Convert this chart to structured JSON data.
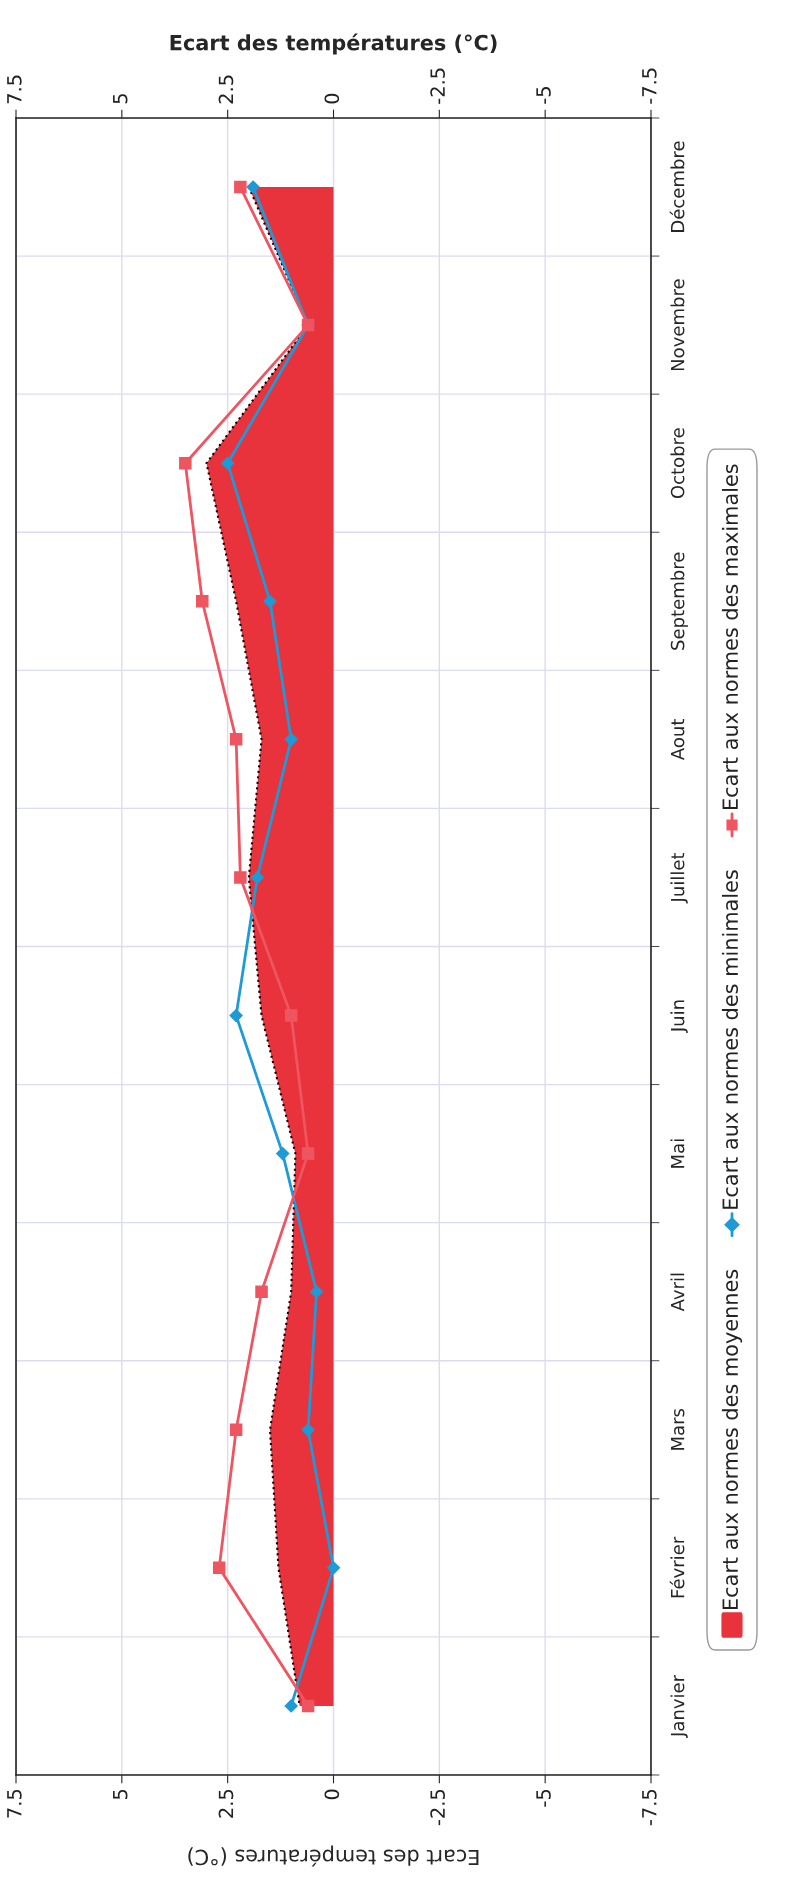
{
  "chart_data": {
    "type": "line",
    "orientation": "horizontal",
    "categories": [
      "Décembre",
      "Novembre",
      "Octobre",
      "Septembre",
      "Aout",
      "Juillet",
      "Juin",
      "Mai",
      "Avril",
      "Mars",
      "Février",
      "Janvier"
    ],
    "series": [
      {
        "name": "Ecart aux normes des moyennes",
        "type": "area",
        "color": "#e8323c",
        "line_style": "dotted",
        "values": [
          2.0,
          0.6,
          3.0,
          2.3,
          1.7,
          2.0,
          1.7,
          0.9,
          1.0,
          1.5,
          1.3,
          0.8
        ]
      },
      {
        "name": "Ecart aux normes des minimales",
        "color": "#1e9ad6",
        "marker": "diamond",
        "values": [
          1.9,
          0.6,
          2.5,
          1.5,
          1.0,
          1.8,
          2.3,
          1.2,
          0.4,
          0.6,
          0.0,
          1.0
        ]
      },
      {
        "name": "Ecart aux normes des maximales",
        "color": "#ee5560",
        "marker": "square",
        "values": [
          2.2,
          0.6,
          3.5,
          3.1,
          2.3,
          2.2,
          1.0,
          0.6,
          1.7,
          2.3,
          2.7,
          0.6
        ]
      }
    ],
    "xlabel": "Ecart des températures (°C)",
    "x2label": "Ecart des températures (°C)",
    "xlim": [
      7.5,
      -7.5
    ],
    "xticks": [
      7.5,
      5,
      2.5,
      0,
      -2.5,
      -5,
      -7.5
    ],
    "x2lim": [
      7.5,
      -7.5
    ],
    "x2ticks": [
      7.5,
      5,
      2.5,
      0,
      -2.5,
      -5,
      -7.5
    ],
    "grid": true,
    "legend": "right"
  }
}
